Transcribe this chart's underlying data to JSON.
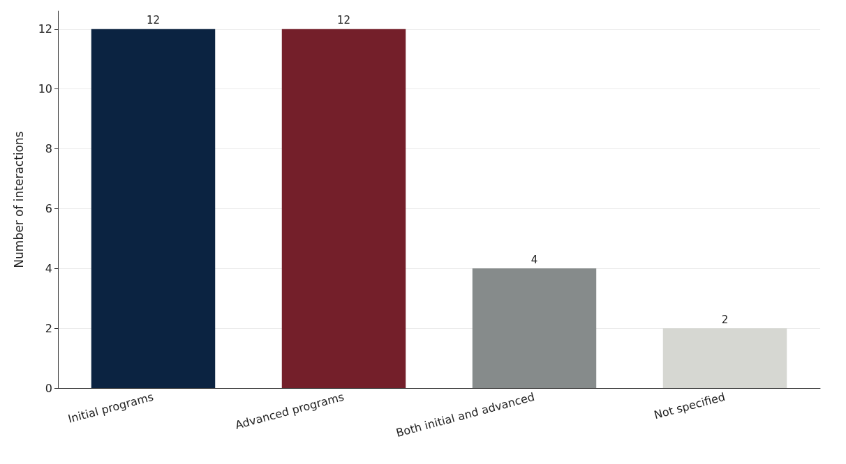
{
  "chart_data": {
    "type": "bar",
    "ylabel": "Number of interactions",
    "categories": [
      "Initial programs",
      "Advanced programs",
      "Both initial and advanced",
      "Not specified"
    ],
    "values": [
      12,
      12,
      4,
      2
    ],
    "colors": [
      "#0b2341",
      "#741f2a",
      "#868b8b",
      "#d6d7d2"
    ],
    "ylim": [
      0,
      12.6
    ],
    "yticks": [
      0,
      2,
      4,
      6,
      8,
      10,
      12
    ],
    "grid": "y",
    "data_labels": true
  }
}
